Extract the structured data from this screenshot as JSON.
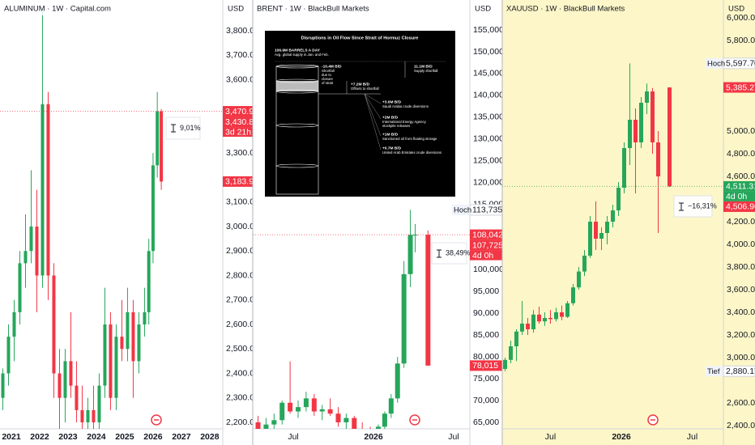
{
  "chart_data": [
    {
      "type": "candlestick",
      "title": "ALUMINUM · 1W · Capital.com",
      "currency": "USD",
      "background": "#ffffff",
      "up_color": "#26a65b",
      "down_color": "#f23645",
      "x": [
        2020.7,
        2020.9,
        2021.1,
        2021.3,
        2021.5,
        2021.7,
        2021.9,
        2022.1,
        2022.3,
        2022.5,
        2022.7,
        2022.9,
        2023.1,
        2023.3,
        2023.5,
        2023.7,
        2023.9,
        2024.1,
        2024.3,
        2024.5,
        2024.7,
        2024.9,
        2025.1,
        2025.3,
        2025.5,
        2025.7,
        2025.85,
        2026.0,
        2026.15,
        2026.29
      ],
      "open": [
        2300,
        2400,
        2550,
        2650,
        2850,
        2900,
        3000,
        2800,
        3500,
        2800,
        2400,
        2300,
        2450,
        2350,
        2250,
        2200,
        2250,
        2200,
        2350,
        2600,
        2300,
        2550,
        2500,
        2650,
        2450,
        2600,
        2650,
        2900,
        3250,
        3470.9
      ],
      "high": [
        2420,
        2600,
        2700,
        2900,
        3050,
        3230,
        3150,
        3880,
        3550,
        2850,
        2500,
        2500,
        2650,
        2450,
        2350,
        2300,
        2350,
        2400,
        2750,
        2650,
        2600,
        2700,
        2750,
        2700,
        2650,
        2750,
        2950,
        3300,
        3550,
        3480
      ],
      "low": [
        2250,
        2350,
        2450,
        2600,
        2750,
        2850,
        2650,
        2750,
        2700,
        2300,
        2150,
        2200,
        2300,
        2200,
        2100,
        2100,
        2150,
        2150,
        2300,
        2250,
        2250,
        2450,
        2450,
        2300,
        2400,
        2550,
        2600,
        2850,
        3200,
        3150
      ],
      "close": [
        2400,
        2550,
        2650,
        2850,
        2900,
        3000,
        2800,
        3500,
        2800,
        2400,
        2300,
        2450,
        2350,
        2250,
        2200,
        2250,
        2200,
        2350,
        2600,
        2300,
        2550,
        2500,
        2650,
        2450,
        2600,
        2650,
        2900,
        3250,
        3470.9,
        3183.9
      ],
      "xlim": [
        2020.6,
        2028.46
      ],
      "xticks": [
        2021,
        2022,
        2023,
        2024,
        2025,
        2026,
        2027,
        2028
      ],
      "ylim": [
        2173.6,
        3925.6
      ],
      "yticks": [
        {
          "value": 3800,
          "label": "3,800.0"
        },
        {
          "value": 3700,
          "label": "3,700.0"
        },
        {
          "value": 3600,
          "label": "3,600.0"
        },
        {
          "value": 3300,
          "label": "3,300.0"
        },
        {
          "value": 3100,
          "label": "3,100.0"
        },
        {
          "value": 3000,
          "label": "3,000.0"
        },
        {
          "value": 2900,
          "label": "2,900.0"
        },
        {
          "value": 2800,
          "label": "2,800.0"
        },
        {
          "value": 2700,
          "label": "2,700.0"
        },
        {
          "value": 2600,
          "label": "2,600.0"
        },
        {
          "value": 2500,
          "label": "2,500.0"
        },
        {
          "value": 2400,
          "label": "2,400.0"
        },
        {
          "value": 2300,
          "label": "2,300.0"
        },
        {
          "value": 2200,
          "label": "2,200.0"
        }
      ],
      "price_labels": [
        {
          "value": 3470.9,
          "label": "3,470.9",
          "bg": "#f23645",
          "line": true
        },
        {
          "value": 3430.8,
          "label": "3,430.8",
          "bg": "#f23645",
          "note": "3d 21h"
        },
        {
          "value": 3183.9,
          "label": "3,183.9",
          "bg": "#f23645"
        }
      ],
      "measure": "9,01%"
    },
    {
      "type": "candlestick",
      "title": "BRENT · 1W · BlackBull Markets",
      "currency": "USD",
      "background": "#ffffff",
      "up_color": "#26a65b",
      "down_color": "#f23645",
      "x": [
        2025.28,
        2025.33,
        2025.38,
        2025.43,
        2025.48,
        2025.53,
        2025.58,
        2025.63,
        2025.68,
        2025.73,
        2025.78,
        2025.83,
        2025.88,
        2025.93,
        2025.98,
        2026.03,
        2026.07,
        2026.11,
        2026.15,
        2026.19,
        2026.23,
        2026.26,
        2026.34
      ],
      "open": [
        65000,
        63500,
        64500,
        65500,
        69500,
        67500,
        68500,
        70500,
        67500,
        68000,
        67000,
        65000,
        66000,
        63500,
        62500,
        61500,
        64000,
        67000,
        70500,
        78500,
        99000,
        108000,
        108042
      ],
      "high": [
        66500,
        66000,
        67000,
        70000,
        79000,
        70000,
        72000,
        71500,
        69000,
        70500,
        68500,
        67000,
        66500,
        65000,
        64000,
        64500,
        67500,
        71500,
        80000,
        102000,
        113735,
        110500,
        109000
      ],
      "low": [
        62000,
        61000,
        63000,
        64500,
        67000,
        66000,
        67500,
        66500,
        65500,
        66500,
        64000,
        63500,
        62500,
        61500,
        60500,
        60500,
        63500,
        66000,
        69500,
        77500,
        96000,
        104000,
        78015
      ],
      "close": [
        63500,
        64500,
        65500,
        69500,
        67500,
        68500,
        70500,
        67500,
        68000,
        67000,
        65000,
        66000,
        63500,
        62500,
        61500,
        64000,
        67000,
        70500,
        78500,
        99000,
        108000,
        108042,
        78015
      ],
      "xlim": [
        2025.247,
        2026.601
      ],
      "xticks": [
        {
          "value": 2025.5,
          "label": "Jul"
        },
        2026,
        {
          "value": 2026.5,
          "label": "Jul"
        }
      ],
      "ylim": [
        63515,
        161882
      ],
      "yticks": [
        {
          "value": 155000,
          "label": "155,000"
        },
        {
          "value": 150000,
          "label": "150,000"
        },
        {
          "value": 145000,
          "label": "145,000"
        },
        {
          "value": 140000,
          "label": "140,000"
        },
        {
          "value": 135000,
          "label": "135,000"
        },
        {
          "value": 130000,
          "label": "130,000"
        },
        {
          "value": 125000,
          "label": "125,000"
        },
        {
          "value": 120000,
          "label": "120,000"
        },
        {
          "value": 115000,
          "label": "115,000"
        },
        {
          "value": 100000,
          "label": "100,000"
        },
        {
          "value": 95000,
          "label": "95,000"
        },
        {
          "value": 90000,
          "label": "90,000"
        },
        {
          "value": 85000,
          "label": "85,000"
        },
        {
          "value": 80000,
          "label": "80,000"
        },
        {
          "value": 75000,
          "label": "75,000"
        },
        {
          "value": 70000,
          "label": "70,000"
        },
        {
          "value": 65000,
          "label": "65,000"
        }
      ],
      "price_labels": [
        {
          "value": 113735,
          "label": "113,735",
          "bg": "#ffffff",
          "flag": "Hoch"
        },
        {
          "value": 108042,
          "label": "108,042",
          "bg": "#f23645",
          "line": true
        },
        {
          "value": 107725,
          "label": "107,725",
          "bg": "#f23645",
          "note": "4d 0h"
        },
        {
          "value": 78015,
          "label": "78,015",
          "bg": "#f23645"
        }
      ],
      "measure": "38,49%"
    },
    {
      "type": "candlestick",
      "title": "XAUUSD · 1W · BlackBull Markets",
      "currency": "USD",
      "background": "#fdf6c8",
      "up_color": "#26a65b",
      "down_color": "#f23645",
      "x": [
        2025.18,
        2025.22,
        2025.26,
        2025.3,
        2025.34,
        2025.38,
        2025.42,
        2025.46,
        2025.5,
        2025.54,
        2025.58,
        2025.62,
        2025.66,
        2025.7,
        2025.74,
        2025.78,
        2025.82,
        2025.86,
        2025.9,
        2025.94,
        2025.98,
        2026.02,
        2026.06,
        2026.1,
        2026.14,
        2026.18,
        2026.22,
        2026.26,
        2026.34
      ],
      "open": [
        2900,
        2980,
        3100,
        3230,
        3300,
        3250,
        3380,
        3320,
        3350,
        3340,
        3400,
        3360,
        3480,
        3620,
        3760,
        3900,
        4200,
        4050,
        4100,
        4200,
        4300,
        4500,
        4850,
        5100,
        4900,
        5250,
        5350,
        4900,
        5385.27
      ],
      "high": [
        3000,
        3150,
        3250,
        3500,
        3350,
        3420,
        3450,
        3400,
        3420,
        3440,
        3460,
        3500,
        3650,
        3800,
        3950,
        4250,
        4380,
        4150,
        4250,
        4350,
        4550,
        4900,
        5597.7,
        5200,
        5300,
        5420,
        5380,
        5000,
        5385.27
      ],
      "low": [
        2880.17,
        2950,
        2970,
        3200,
        3200,
        3220,
        3300,
        3280,
        3300,
        3320,
        3330,
        3350,
        3460,
        3600,
        3720,
        3880,
        3950,
        3950,
        4000,
        4150,
        4250,
        4450,
        4700,
        4450,
        4850,
        5150,
        4800,
        4100,
        4506.96
      ],
      "close": [
        2980,
        3100,
        3230,
        3300,
        3250,
        3380,
        3320,
        3350,
        3340,
        3400,
        3360,
        3480,
        3620,
        3760,
        3900,
        4200,
        4050,
        4100,
        4200,
        4300,
        4500,
        4850,
        5100,
        4900,
        5250,
        5350,
        4900,
        4600,
        4511.31
      ],
      "xlim": [
        2025.16,
        2026.72
      ],
      "xticks": [
        {
          "value": 2025.5,
          "label": "Jul"
        },
        2026,
        {
          "value": 2026.5,
          "label": "Jul"
        }
      ],
      "ylim": [
        2371.4,
        6157.1
      ],
      "yticks": [
        {
          "value": 6000,
          "label": "6,000.0"
        },
        {
          "value": 5800,
          "label": "5,800.0"
        },
        {
          "value": 5000,
          "label": "5,000.0"
        },
        {
          "value": 4800,
          "label": "4,800.0"
        },
        {
          "value": 4600,
          "label": "4,600.0"
        },
        {
          "value": 4200,
          "label": "4,200.0"
        },
        {
          "value": 4000,
          "label": "4,000.0"
        },
        {
          "value": 3800,
          "label": "3,800.0"
        },
        {
          "value": 3600,
          "label": "3,600.0"
        },
        {
          "value": 3400,
          "label": "3,400.0"
        },
        {
          "value": 3200,
          "label": "3,200.0"
        },
        {
          "value": 3000,
          "label": "3,000.0"
        },
        {
          "value": 2600,
          "label": "2,600.0"
        },
        {
          "value": 2400,
          "label": "2,400.0"
        }
      ],
      "price_labels": [
        {
          "value": 5597.7,
          "label": "5,597.70",
          "bg": "#ffffff",
          "flag": "Hoch"
        },
        {
          "value": 5385.27,
          "label": "5,385.27",
          "bg": "#f23645"
        },
        {
          "value": 4511.31,
          "label": "4,511.31",
          "bg": "#26a65b",
          "note": "4d 0h",
          "line": true
        },
        {
          "value": 4506.96,
          "label": "4,506.96",
          "bg": "#f23645"
        },
        {
          "value": 2880.17,
          "label": "2,880.17",
          "bg": "#ffffff",
          "flag": "Tief"
        }
      ],
      "measure": "−16,31%"
    }
  ],
  "inset": {
    "title": "Disruptions in Oil Flow Since Strait of Hormuz Closure",
    "supply": "106.9M BARRELS A DAY",
    "supply_note": "Avg. global supply in Jan. and Feb.",
    "shortfall": "-10.4M B/D",
    "shortfall_lines": [
      "Shortfall",
      "due to",
      "closure",
      "of strait"
    ],
    "supply_shortfall": "11.1M B/D",
    "supply_shortfall_note": "Supply shortfall",
    "offsets": "+7.2M B/D",
    "offsets_note": "Offsets to shortfall",
    "items": [
      {
        "amount": "+3.0M B/D",
        "lines": [
          "Saudi Arabia crude diversions"
        ]
      },
      {
        "amount": "+2M B/D",
        "lines": [
          "International Energy Agency",
          "stockpile releases"
        ]
      },
      {
        "amount": "+1M B/D",
        "lines": [
          "Sanctioned oil from floating storage"
        ]
      },
      {
        "amount": "+0.7M B/D",
        "lines": [
          "United Arab Emirates crude diversions"
        ]
      }
    ]
  }
}
